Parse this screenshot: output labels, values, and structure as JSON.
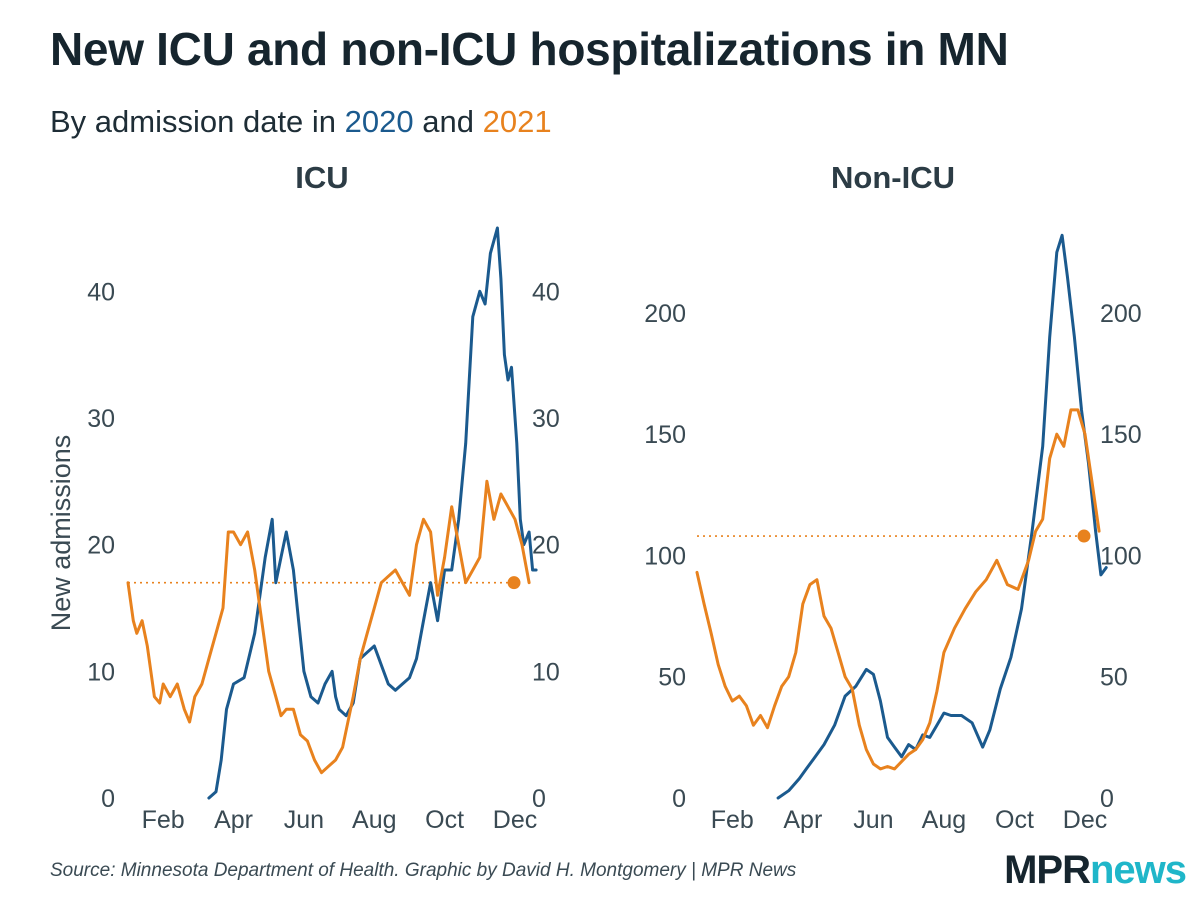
{
  "header": {
    "title": "New ICU and non-ICU hospitalizations in MN",
    "subtitle_prefix": "By admission date in",
    "subtitle_year1": "2020",
    "subtitle_and": "and",
    "subtitle_year2": "2021"
  },
  "footer": {
    "source": "Source: Minnesota Department of Health. Graphic by David H. Montgomery | MPR News",
    "logo_part1": "MPR",
    "logo_part2": "news"
  },
  "colors": {
    "y2020": "#1b5a8e",
    "y2021": "#e8821e"
  },
  "chart_data": [
    {
      "type": "line",
      "title": "ICU",
      "ylabel": "New admissions",
      "ylim": [
        0,
        45
      ],
      "yticks": [
        0,
        10,
        20,
        30,
        40
      ],
      "xlim": [
        1,
        12
      ],
      "xticks": [
        2,
        4,
        6,
        8,
        10,
        12
      ],
      "xticklabels": [
        "Feb",
        "Apr",
        "Jun",
        "Aug",
        "Oct",
        "Dec"
      ],
      "reference_line": 17,
      "series": [
        {
          "name": "2020",
          "color": "#1b5a8e",
          "x": [
            3.3,
            3.5,
            3.65,
            3.8,
            4.0,
            4.3,
            4.6,
            4.9,
            5.1,
            5.2,
            5.35,
            5.5,
            5.7,
            5.85,
            6.0,
            6.2,
            6.4,
            6.6,
            6.8,
            6.9,
            7.0,
            7.2,
            7.4,
            7.6,
            7.8,
            8.0,
            8.2,
            8.4,
            8.6,
            8.8,
            9.0,
            9.2,
            9.4,
            9.6,
            9.8,
            10.0,
            10.2,
            10.4,
            10.6,
            10.8,
            11.0,
            11.15,
            11.3,
            11.4,
            11.5,
            11.6,
            11.7,
            11.8,
            11.9,
            12.05,
            12.15,
            12.25,
            12.4,
            12.5,
            12.6
          ],
          "y": [
            0,
            0.5,
            3,
            7,
            9,
            9.5,
            13,
            19,
            22,
            17,
            19,
            21,
            18,
            14,
            10,
            8,
            7.5,
            9,
            10,
            8,
            7,
            6.5,
            7.5,
            11,
            11.5,
            12,
            10.5,
            9,
            8.5,
            9,
            9.5,
            11,
            14,
            17,
            14,
            18,
            18,
            22,
            28,
            38,
            40,
            39,
            43,
            44,
            45,
            41,
            35,
            33,
            34,
            28,
            22,
            20,
            21,
            18,
            18
          ]
        },
        {
          "name": "2021",
          "color": "#e8821e",
          "x": [
            1.0,
            1.15,
            1.25,
            1.4,
            1.55,
            1.75,
            1.9,
            2.0,
            2.2,
            2.4,
            2.6,
            2.75,
            2.9,
            3.1,
            3.3,
            3.5,
            3.7,
            3.85,
            4.0,
            4.2,
            4.4,
            4.6,
            4.8,
            5.0,
            5.2,
            5.35,
            5.5,
            5.7,
            5.9,
            6.1,
            6.3,
            6.5,
            6.7,
            6.9,
            7.1,
            7.25,
            7.4,
            7.6,
            7.8,
            8.0,
            8.2,
            8.4,
            8.6,
            8.8,
            9.0,
            9.2,
            9.4,
            9.6,
            9.8,
            10.0,
            10.2,
            10.4,
            10.6,
            10.8,
            11.0,
            11.2,
            11.4,
            11.6,
            11.8,
            12.0,
            12.2,
            12.4
          ],
          "y": [
            17,
            14,
            13,
            14,
            12,
            8,
            7.5,
            9,
            8,
            9,
            7,
            6,
            8,
            9,
            11,
            13,
            15,
            21,
            21,
            20,
            21,
            18,
            14,
            10,
            8,
            6.5,
            7,
            7,
            5,
            4.5,
            3,
            2,
            2.5,
            3,
            4,
            6,
            8,
            11,
            13,
            15,
            17,
            17.5,
            18,
            17,
            16,
            20,
            22,
            21,
            16,
            19,
            23,
            20,
            17,
            18,
            19,
            25,
            22,
            24,
            23,
            22,
            20,
            17
          ]
        }
      ]
    },
    {
      "type": "line",
      "title": "Non-ICU",
      "ylabel": "",
      "ylim": [
        0,
        235
      ],
      "yticks": [
        0,
        50,
        100,
        150,
        200
      ],
      "xlim": [
        1,
        12
      ],
      "xticks": [
        2,
        4,
        6,
        8,
        10,
        12
      ],
      "xticklabels": [
        "Feb",
        "Apr",
        "Jun",
        "Aug",
        "Oct",
        "Dec"
      ],
      "reference_line": 108,
      "series": [
        {
          "name": "2020",
          "color": "#1b5a8e",
          "x": [
            3.3,
            3.6,
            3.9,
            4.1,
            4.3,
            4.6,
            4.9,
            5.2,
            5.5,
            5.8,
            6.0,
            6.2,
            6.4,
            6.6,
            6.8,
            7.0,
            7.2,
            7.4,
            7.6,
            7.8,
            8.0,
            8.2,
            8.5,
            8.8,
            9.1,
            9.3,
            9.6,
            9.9,
            10.2,
            10.5,
            10.8,
            11.0,
            11.2,
            11.35,
            11.5,
            11.7,
            11.9,
            12.1,
            12.3,
            12.45,
            12.6
          ],
          "y": [
            0,
            3,
            8,
            12,
            16,
            22,
            30,
            42,
            46,
            53,
            51,
            40,
            25,
            21,
            17,
            22,
            20,
            26,
            25,
            30,
            35,
            34,
            34,
            31,
            21,
            28,
            45,
            58,
            78,
            110,
            145,
            190,
            225,
            232,
            215,
            190,
            160,
            138,
            110,
            92,
            95
          ]
        },
        {
          "name": "2021",
          "color": "#e8821e",
          "x": [
            1.0,
            1.2,
            1.4,
            1.6,
            1.8,
            2.0,
            2.2,
            2.4,
            2.6,
            2.8,
            3.0,
            3.2,
            3.4,
            3.6,
            3.8,
            4.0,
            4.2,
            4.4,
            4.6,
            4.8,
            5.0,
            5.2,
            5.4,
            5.6,
            5.8,
            6.0,
            6.2,
            6.4,
            6.6,
            6.8,
            7.0,
            7.2,
            7.4,
            7.6,
            7.8,
            8.0,
            8.3,
            8.6,
            8.9,
            9.2,
            9.5,
            9.8,
            10.1,
            10.4,
            10.6,
            10.8,
            11.0,
            11.2,
            11.4,
            11.6,
            11.8,
            12.0,
            12.2,
            12.4
          ],
          "y": [
            93,
            80,
            68,
            55,
            46,
            40,
            42,
            38,
            30,
            34,
            29,
            38,
            46,
            50,
            60,
            80,
            88,
            90,
            75,
            70,
            60,
            50,
            45,
            30,
            20,
            14,
            12,
            13,
            12,
            15,
            18,
            20,
            24,
            31,
            44,
            60,
            70,
            78,
            85,
            90,
            98,
            88,
            86,
            98,
            110,
            115,
            140,
            150,
            145,
            160,
            160,
            150,
            130,
            110
          ]
        }
      ]
    }
  ]
}
